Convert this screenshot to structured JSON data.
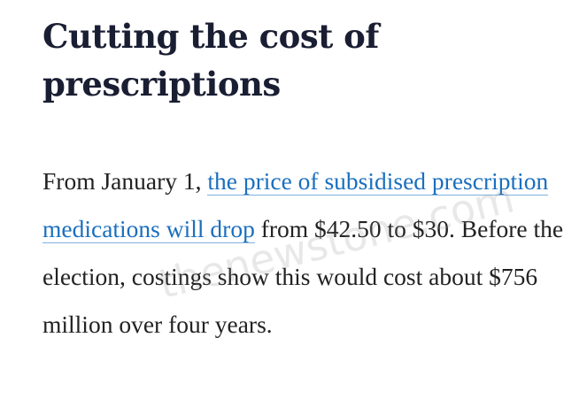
{
  "article": {
    "headline": "Cutting the cost of prescriptions",
    "para_part1": "From January 1, ",
    "para_link": "the price of subsidised prescription medications will drop",
    "para_part2": " from $42.50 to $30. Before the election, costings show this would cost about $756 million over four years."
  },
  "watermark": {
    "text": "thenewstone.com"
  }
}
